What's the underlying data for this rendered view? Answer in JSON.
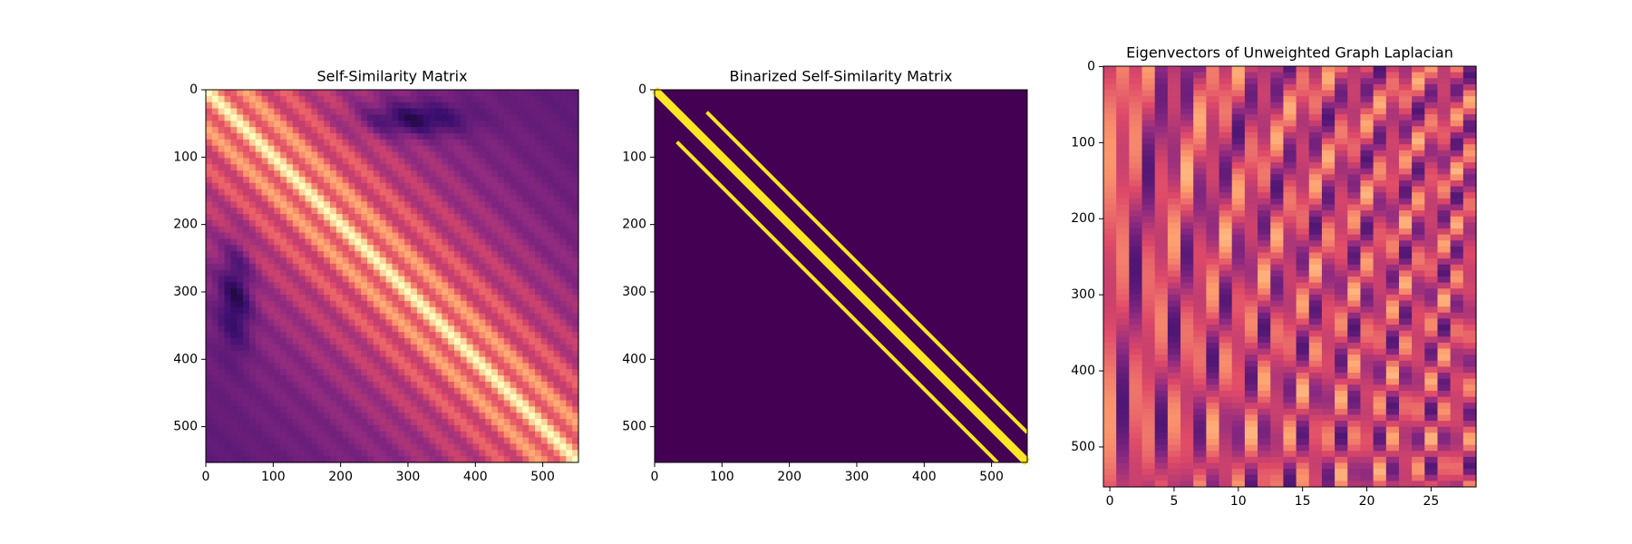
{
  "chart_data": [
    {
      "type": "heatmap",
      "title": "Self-Similarity Matrix",
      "colormap": "magma",
      "xlim": [
        0,
        553
      ],
      "ylim": [
        553,
        0
      ],
      "xticks": [
        0,
        100,
        200,
        300,
        400,
        500
      ],
      "yticks": [
        0,
        100,
        200,
        300,
        400,
        500
      ]
    },
    {
      "type": "heatmap",
      "title": "Binarized Self-Similarity Matrix",
      "colormap": "viridis",
      "xlim": [
        0,
        553
      ],
      "ylim": [
        553,
        0
      ],
      "xticks": [
        0,
        100,
        200,
        300,
        400,
        500
      ],
      "yticks": [
        0,
        100,
        200,
        300,
        400,
        500
      ]
    },
    {
      "type": "heatmap",
      "title": "Eigenvectors of Unweighted Graph Laplacian",
      "colormap": "magma",
      "xlim": [
        -0.5,
        28.5
      ],
      "ylim": [
        552.5,
        -0.5
      ],
      "xticks": [
        0,
        5,
        10,
        15,
        20,
        25
      ],
      "yticks": [
        0,
        100,
        200,
        300,
        400,
        500
      ]
    }
  ]
}
